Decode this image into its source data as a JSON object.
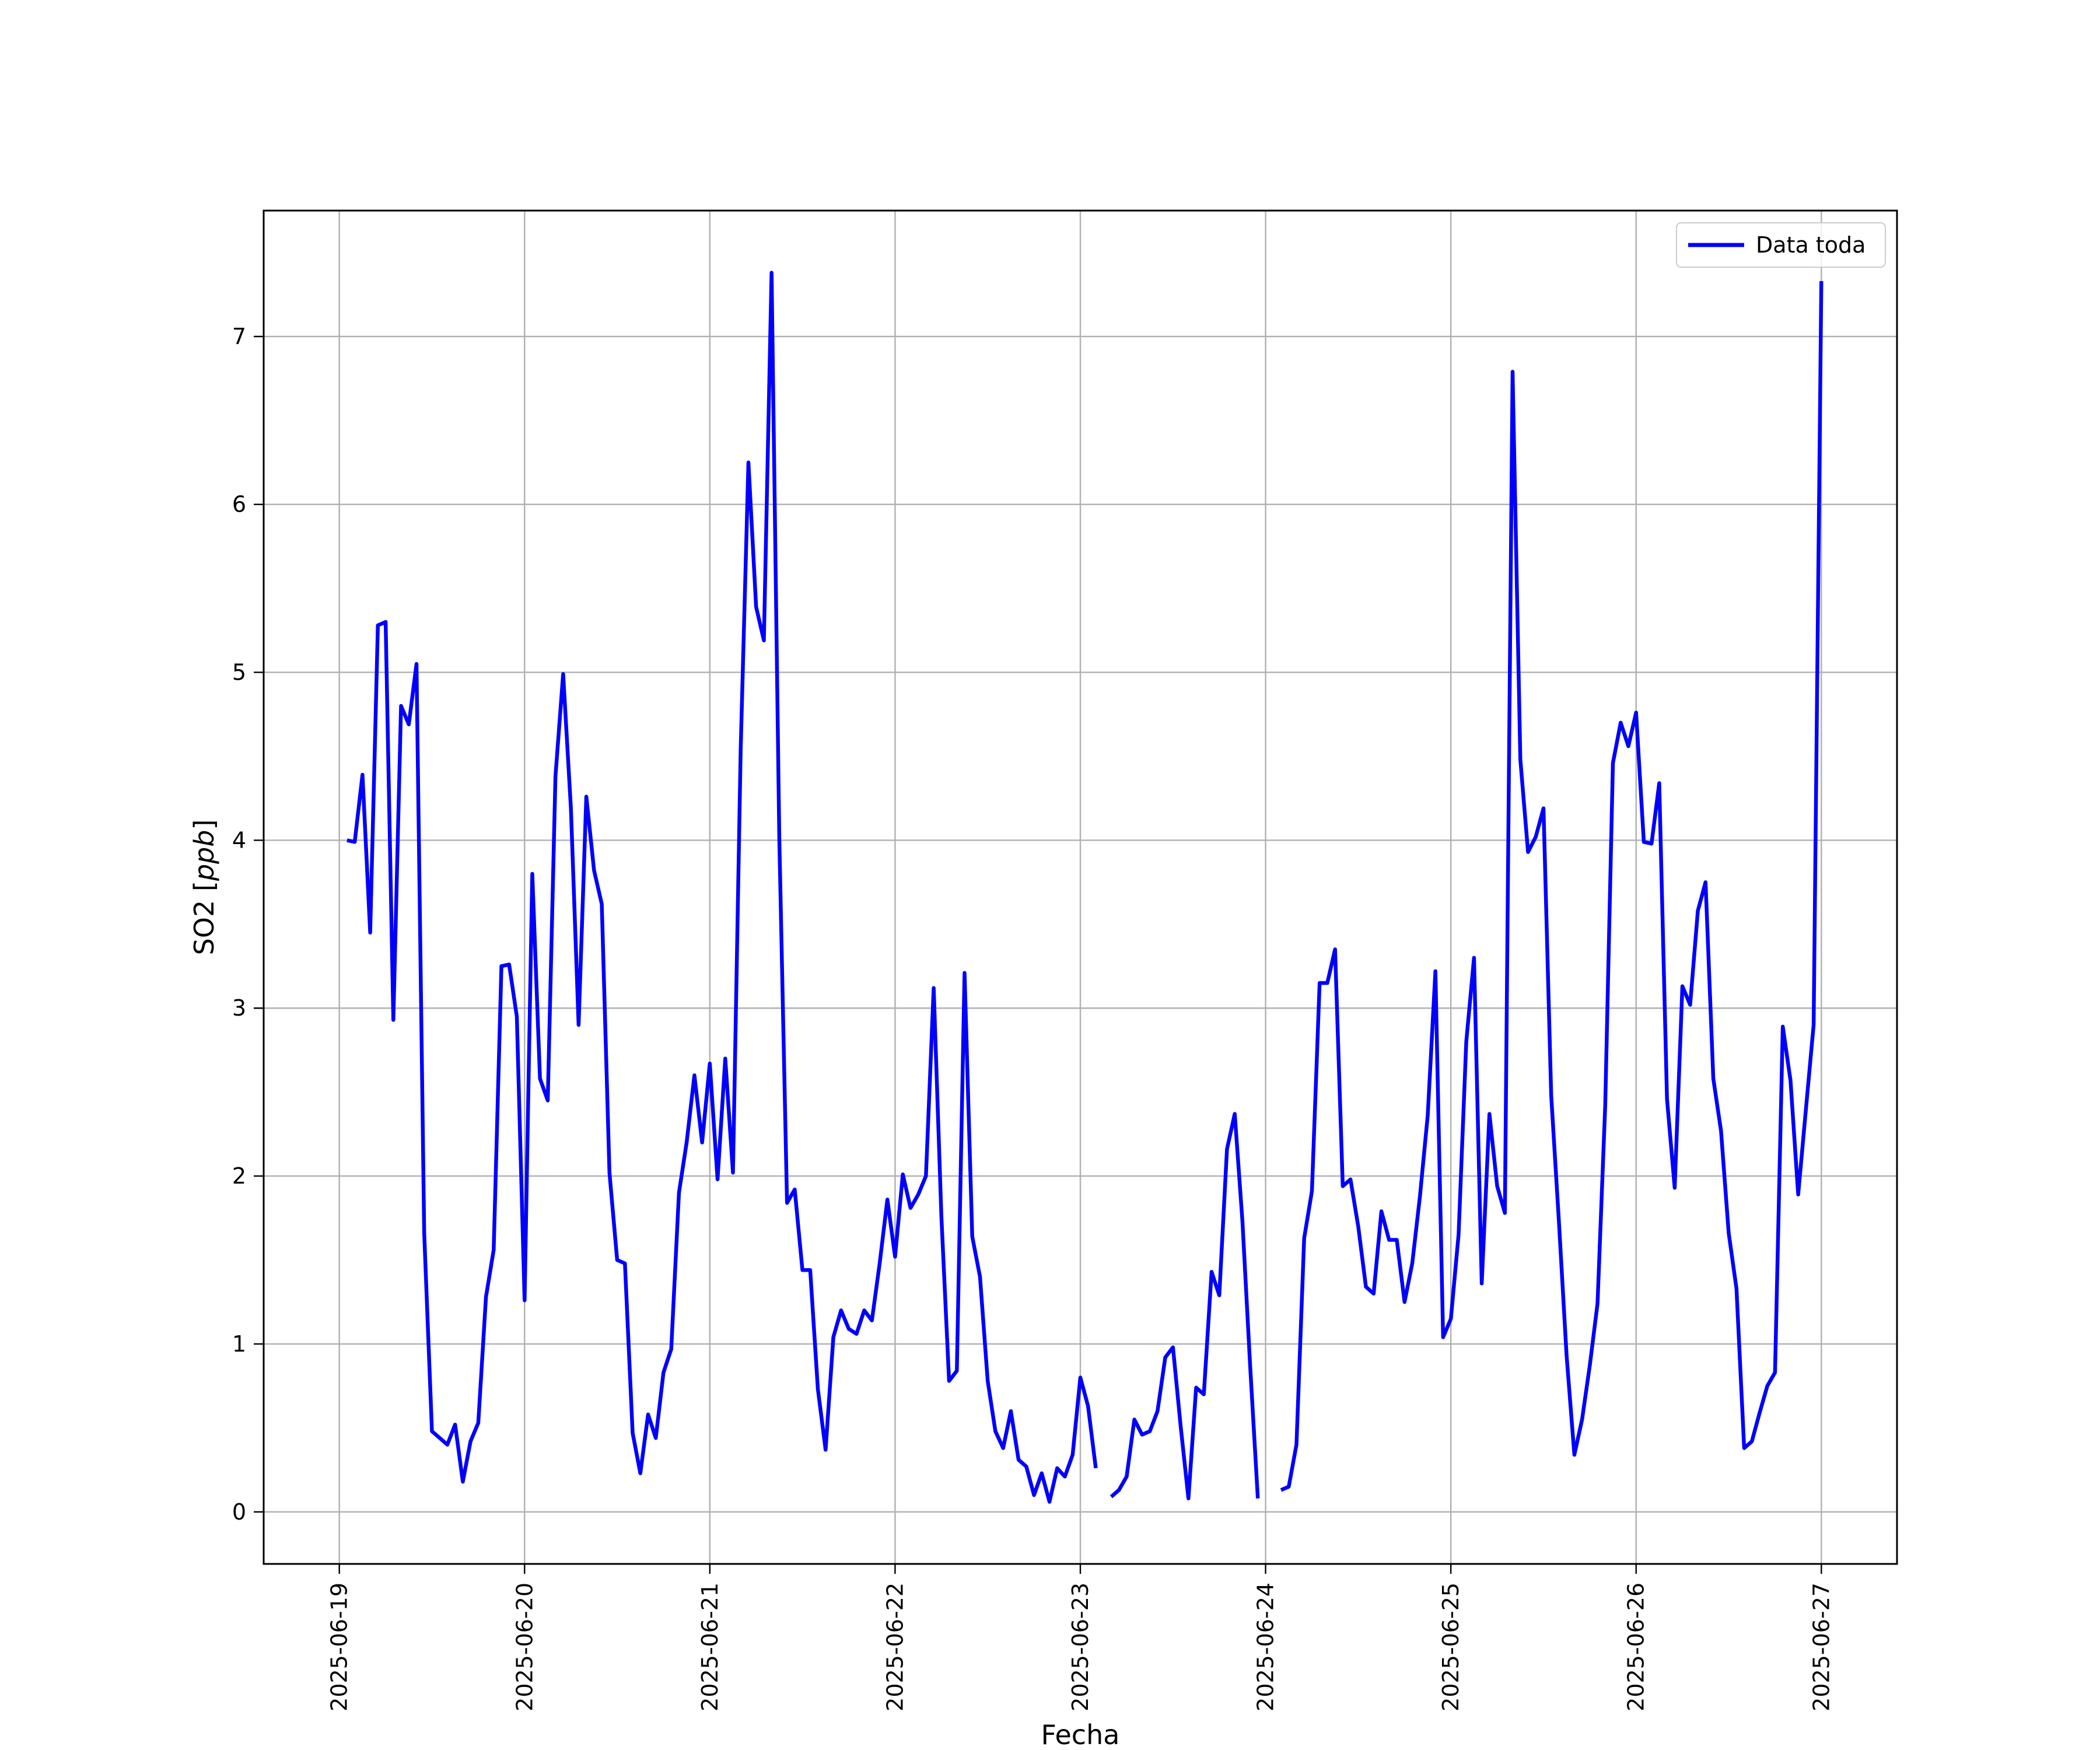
{
  "chart_data": {
    "type": "line",
    "title": "",
    "xlabel": "Fecha",
    "ylabel": "SO2 [",
    "ylabel_unit": "ppb",
    "ylabel_close": "]",
    "xlim": [
      "2025-06-18T14:12",
      "2025-06-27T09:48"
    ],
    "ylim": [
      -0.31,
      7.75
    ],
    "x_ticks": [
      "2025-06-19",
      "2025-06-20",
      "2025-06-21",
      "2025-06-22",
      "2025-06-23",
      "2025-06-24",
      "2025-06-25",
      "2025-06-26",
      "2025-06-27"
    ],
    "y_ticks": [
      "0",
      "1",
      "2",
      "3",
      "4",
      "5",
      "6",
      "7"
    ],
    "grid": true,
    "legend_position": "top-right",
    "series": [
      {
        "name": "Data toda",
        "color": "#0000ff",
        "points": [
          [
            "2025-06-19T01:00",
            4.0
          ],
          [
            "2025-06-19T02:00",
            3.99
          ],
          [
            "2025-06-19T03:00",
            4.39
          ],
          [
            "2025-06-19T04:00",
            3.45
          ],
          [
            "2025-06-19T05:00",
            5.28
          ],
          [
            "2025-06-19T06:00",
            5.3
          ],
          [
            "2025-06-19T07:00",
            2.93
          ],
          [
            "2025-06-19T08:00",
            4.8
          ],
          [
            "2025-06-19T09:00",
            4.69
          ],
          [
            "2025-06-19T10:00",
            5.05
          ],
          [
            "2025-06-19T11:00",
            1.66
          ],
          [
            "2025-06-19T12:00",
            0.48
          ],
          [
            "2025-06-19T13:00",
            0.44
          ],
          [
            "2025-06-19T14:00",
            0.4
          ],
          [
            "2025-06-19T15:00",
            0.52
          ],
          [
            "2025-06-19T16:00",
            0.18
          ],
          [
            "2025-06-19T17:00",
            0.42
          ],
          [
            "2025-06-19T18:00",
            0.53
          ],
          [
            "2025-06-19T19:00",
            1.28
          ],
          [
            "2025-06-19T20:00",
            1.56
          ],
          [
            "2025-06-19T21:00",
            3.25
          ],
          [
            "2025-06-19T22:00",
            3.26
          ],
          [
            "2025-06-19T23:00",
            2.95
          ],
          [
            "2025-06-20T00:00",
            1.26
          ],
          [
            "2025-06-20T01:00",
            3.8
          ],
          [
            "2025-06-20T02:00",
            2.58
          ],
          [
            "2025-06-20T03:00",
            2.45
          ],
          [
            "2025-06-20T04:00",
            4.38
          ],
          [
            "2025-06-20T05:00",
            4.99
          ],
          [
            "2025-06-20T06:00",
            4.19
          ],
          [
            "2025-06-20T07:00",
            2.9
          ],
          [
            "2025-06-20T08:00",
            4.26
          ],
          [
            "2025-06-20T09:00",
            3.82
          ],
          [
            "2025-06-20T10:00",
            3.62
          ],
          [
            "2025-06-20T11:00",
            2.02
          ],
          [
            "2025-06-20T12:00",
            1.5
          ],
          [
            "2025-06-20T13:00",
            1.48
          ],
          [
            "2025-06-20T14:00",
            0.47
          ],
          [
            "2025-06-20T15:00",
            0.23
          ],
          [
            "2025-06-20T16:00",
            0.58
          ],
          [
            "2025-06-20T17:00",
            0.44
          ],
          [
            "2025-06-20T18:00",
            0.83
          ],
          [
            "2025-06-20T19:00",
            0.97
          ],
          [
            "2025-06-20T20:00",
            1.9
          ],
          [
            "2025-06-20T21:00",
            2.2
          ],
          [
            "2025-06-20T22:00",
            2.6
          ],
          [
            "2025-06-20T23:00",
            2.2
          ],
          [
            "2025-06-21T00:00",
            2.67
          ],
          [
            "2025-06-21T01:00",
            1.98
          ],
          [
            "2025-06-21T02:00",
            2.7
          ],
          [
            "2025-06-21T03:00",
            2.02
          ],
          [
            "2025-06-21T04:00",
            4.55
          ],
          [
            "2025-06-21T05:00",
            6.25
          ],
          [
            "2025-06-21T06:00",
            5.39
          ],
          [
            "2025-06-21T07:00",
            5.19
          ],
          [
            "2025-06-21T08:00",
            7.38
          ],
          [
            "2025-06-21T09:00",
            4.02
          ],
          [
            "2025-06-21T10:00",
            1.84
          ],
          [
            "2025-06-21T11:00",
            1.92
          ],
          [
            "2025-06-21T12:00",
            1.44
          ],
          [
            "2025-06-21T13:00",
            1.44
          ],
          [
            "2025-06-21T14:00",
            0.73
          ],
          [
            "2025-06-21T15:00",
            0.37
          ],
          [
            "2025-06-21T16:00",
            1.04
          ],
          [
            "2025-06-21T17:00",
            1.2
          ],
          [
            "2025-06-21T18:00",
            1.09
          ],
          [
            "2025-06-21T19:00",
            1.06
          ],
          [
            "2025-06-21T20:00",
            1.2
          ],
          [
            "2025-06-21T21:00",
            1.14
          ],
          [
            "2025-06-21T22:00",
            1.48
          ],
          [
            "2025-06-21T23:00",
            1.86
          ],
          [
            "2025-06-22T00:00",
            1.52
          ],
          [
            "2025-06-22T01:00",
            2.01
          ],
          [
            "2025-06-22T02:00",
            1.81
          ],
          [
            "2025-06-22T03:00",
            1.89
          ],
          [
            "2025-06-22T04:00",
            2.0
          ],
          [
            "2025-06-22T05:00",
            3.12
          ],
          [
            "2025-06-22T06:00",
            1.76
          ],
          [
            "2025-06-22T07:00",
            0.78
          ],
          [
            "2025-06-22T08:00",
            0.84
          ],
          [
            "2025-06-22T09:00",
            3.21
          ],
          [
            "2025-06-22T10:00",
            1.64
          ],
          [
            "2025-06-22T11:00",
            1.4
          ],
          [
            "2025-06-22T12:00",
            0.78
          ],
          [
            "2025-06-22T13:00",
            0.48
          ],
          [
            "2025-06-22T14:00",
            0.38
          ],
          [
            "2025-06-22T15:00",
            0.6
          ],
          [
            "2025-06-22T16:00",
            0.31
          ],
          [
            "2025-06-22T17:00",
            0.27
          ],
          [
            "2025-06-22T18:00",
            0.1
          ],
          [
            "2025-06-22T19:00",
            0.23
          ],
          [
            "2025-06-22T20:00",
            0.06
          ],
          [
            "2025-06-22T21:00",
            0.26
          ],
          [
            "2025-06-22T22:00",
            0.21
          ],
          [
            "2025-06-22T23:00",
            0.34
          ],
          [
            "2025-06-23T00:00",
            0.8
          ],
          [
            "2025-06-23T01:00",
            0.63
          ],
          [
            "2025-06-23T02:00",
            0.26
          ],
          null,
          [
            "2025-06-23T04:00",
            0.09
          ],
          [
            "2025-06-23T05:00",
            0.13
          ],
          [
            "2025-06-23T06:00",
            0.21
          ],
          [
            "2025-06-23T07:00",
            0.55
          ],
          [
            "2025-06-23T08:00",
            0.46
          ],
          [
            "2025-06-23T09:00",
            0.48
          ],
          [
            "2025-06-23T10:00",
            0.6
          ],
          [
            "2025-06-23T11:00",
            0.92
          ],
          [
            "2025-06-23T12:00",
            0.98
          ],
          [
            "2025-06-23T13:00",
            0.51
          ],
          [
            "2025-06-23T14:00",
            0.08
          ],
          [
            "2025-06-23T15:00",
            0.74
          ],
          [
            "2025-06-23T16:00",
            0.7
          ],
          [
            "2025-06-23T17:00",
            1.43
          ],
          [
            "2025-06-23T18:00",
            1.29
          ],
          [
            "2025-06-23T19:00",
            2.16
          ],
          [
            "2025-06-23T20:00",
            2.37
          ],
          [
            "2025-06-23T21:00",
            1.73
          ],
          [
            "2025-06-23T22:00",
            0.87
          ],
          [
            "2025-06-23T23:00",
            0.08
          ],
          null,
          [
            "2025-06-24T02:00",
            0.13
          ],
          [
            "2025-06-24T03:00",
            0.15
          ],
          [
            "2025-06-24T04:00",
            0.4
          ],
          [
            "2025-06-24T05:00",
            1.63
          ],
          [
            "2025-06-24T06:00",
            1.91
          ],
          [
            "2025-06-24T07:00",
            3.15
          ],
          [
            "2025-06-24T08:00",
            3.15
          ],
          [
            "2025-06-24T09:00",
            3.35
          ],
          [
            "2025-06-24T10:00",
            1.94
          ],
          [
            "2025-06-24T11:00",
            1.98
          ],
          [
            "2025-06-24T12:00",
            1.7
          ],
          [
            "2025-06-24T13:00",
            1.34
          ],
          [
            "2025-06-24T14:00",
            1.3
          ],
          [
            "2025-06-24T15:00",
            1.79
          ],
          [
            "2025-06-24T16:00",
            1.62
          ],
          [
            "2025-06-24T17:00",
            1.62
          ],
          [
            "2025-06-24T18:00",
            1.25
          ],
          [
            "2025-06-24T19:00",
            1.48
          ],
          [
            "2025-06-24T20:00",
            1.88
          ],
          [
            "2025-06-24T21:00",
            2.36
          ],
          [
            "2025-06-24T22:00",
            3.22
          ],
          [
            "2025-06-24T23:00",
            1.04
          ],
          [
            "2025-06-25T00:00",
            1.15
          ],
          [
            "2025-06-25T01:00",
            1.65
          ],
          [
            "2025-06-25T02:00",
            2.8
          ],
          [
            "2025-06-25T03:00",
            3.3
          ],
          [
            "2025-06-25T04:00",
            1.36
          ],
          [
            "2025-06-25T05:00",
            2.37
          ],
          [
            "2025-06-25T06:00",
            1.94
          ],
          [
            "2025-06-25T07:00",
            1.78
          ],
          [
            "2025-06-25T08:00",
            6.79
          ],
          [
            "2025-06-25T09:00",
            4.48
          ],
          [
            "2025-06-25T10:00",
            3.93
          ],
          [
            "2025-06-25T11:00",
            4.02
          ],
          [
            "2025-06-25T12:00",
            4.19
          ],
          [
            "2025-06-25T13:00",
            2.48
          ],
          [
            "2025-06-25T14:00",
            1.73
          ],
          [
            "2025-06-25T15:00",
            0.93
          ],
          [
            "2025-06-25T16:00",
            0.34
          ],
          [
            "2025-06-25T17:00",
            0.55
          ],
          [
            "2025-06-25T18:00",
            0.87
          ],
          [
            "2025-06-25T19:00",
            1.24
          ],
          [
            "2025-06-25T20:00",
            2.42
          ],
          [
            "2025-06-25T21:00",
            4.46
          ],
          [
            "2025-06-25T22:00",
            4.7
          ],
          [
            "2025-06-25T23:00",
            4.56
          ],
          [
            "2025-06-26T00:00",
            4.76
          ],
          [
            "2025-06-26T01:00",
            3.99
          ],
          [
            "2025-06-26T02:00",
            3.98
          ],
          [
            "2025-06-26T03:00",
            4.34
          ],
          [
            "2025-06-26T04:00",
            2.46
          ],
          [
            "2025-06-26T05:00",
            1.93
          ],
          [
            "2025-06-26T06:00",
            3.13
          ],
          [
            "2025-06-26T07:00",
            3.02
          ],
          [
            "2025-06-26T08:00",
            3.58
          ],
          [
            "2025-06-26T09:00",
            3.75
          ],
          [
            "2025-06-26T10:00",
            2.58
          ],
          [
            "2025-06-26T11:00",
            2.27
          ],
          [
            "2025-06-26T12:00",
            1.66
          ],
          [
            "2025-06-26T13:00",
            1.33
          ],
          [
            "2025-06-26T14:00",
            0.38
          ],
          [
            "2025-06-26T15:00",
            0.42
          ],
          [
            "2025-06-26T16:00",
            0.59
          ],
          [
            "2025-06-26T17:00",
            0.75
          ],
          [
            "2025-06-26T18:00",
            0.83
          ],
          [
            "2025-06-26T19:00",
            2.89
          ],
          [
            "2025-06-26T20:00",
            2.57
          ],
          [
            "2025-06-26T21:00",
            1.89
          ],
          [
            "2025-06-26T22:00",
            2.4
          ],
          [
            "2025-06-26T23:00",
            2.9
          ],
          [
            "2025-06-27T00:00",
            7.33
          ]
        ]
      }
    ]
  }
}
